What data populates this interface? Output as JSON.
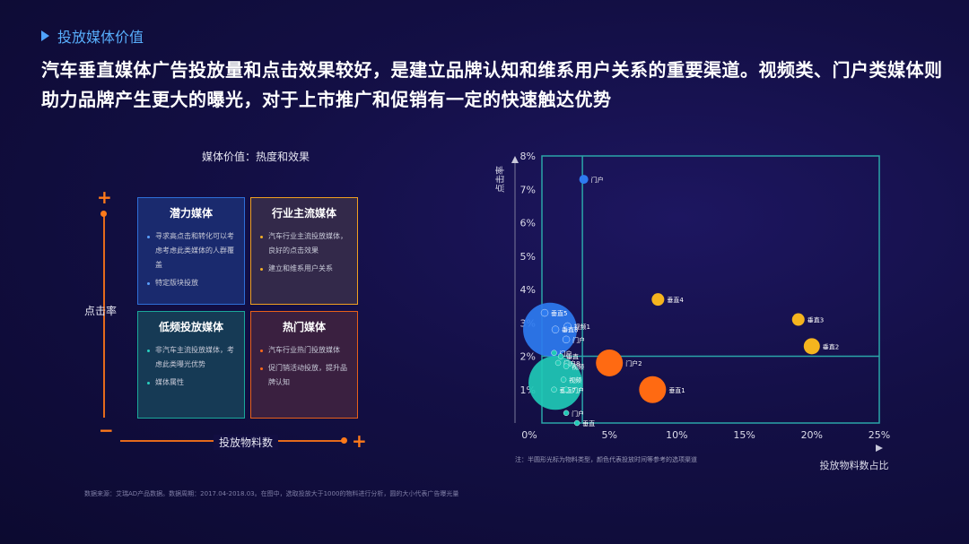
{
  "section": "投放媒体价值",
  "headline": "汽车垂直媒体广告投放量和点击效果较好，是建立品牌认知和维系用户关系的重要渠道。视频类、门户类媒体则助力品牌产生更大的曝光，对于上市推广和促销有一定的快速触达优势",
  "matrix": {
    "title": "媒体价值：热度和效果",
    "y_label": "点击率",
    "x_label": "投放物料数",
    "plus": "+",
    "minus": "−",
    "quadrants": {
      "potential": {
        "title": "潜力媒体",
        "items": [
          "寻求高点击和转化可以考虑考虑此类媒体的人群覆盖",
          "特定版块投放"
        ],
        "color": "#2e6fd8"
      },
      "mainstream": {
        "title": "行业主流媒体",
        "items": [
          "汽车行业主流投放媒体，良好的点击效果",
          "建立和维系用户关系"
        ],
        "color": "#f0a020"
      },
      "low": {
        "title": "低频投放媒体",
        "items": [
          "非汽车主流投放媒体，考虑此类曝光优势",
          "媒体属性"
        ],
        "color": "#1aa89a"
      },
      "hot": {
        "title": "热门媒体",
        "items": [
          "汽车行业热门投放媒体",
          "促门销活动投放，提升品牌认知"
        ],
        "color": "#e8601a"
      }
    }
  },
  "source": "数据来源：艾瑞AD产品数据。数据周期：2017.04-2018.03。在图中，选取投放大于1000的物料进行分析，圆的大小代表广告曝光量",
  "note": "注：半圆形光标为物料类型，颜色代表投放时间等参考的选项渠道",
  "chart_data": {
    "type": "scatter",
    "xlabel": "投放物料数占比",
    "ylabel": "点击率",
    "xlim": [
      0,
      25
    ],
    "ylim": [
      0,
      8
    ],
    "x_ticks": [
      "0%",
      "5%",
      "10%",
      "15%",
      "20%",
      "25%"
    ],
    "y_ticks": [
      "1%",
      "2%",
      "3%",
      "4%",
      "5%",
      "6%",
      "7%",
      "8%"
    ],
    "reference_lines": {
      "x": 3,
      "y": 2
    },
    "points": [
      {
        "label": "门户",
        "x": 3.1,
        "y": 7.3,
        "size": 5,
        "color": "#2e7bf0"
      },
      {
        "label": "垂直4",
        "x": 8.6,
        "y": 3.7,
        "size": 7,
        "color": "#f5b41e"
      },
      {
        "label": "垂直3",
        "x": 19.0,
        "y": 3.1,
        "size": 7,
        "color": "#f5b41e"
      },
      {
        "label": "垂直2",
        "x": 20.0,
        "y": 2.3,
        "size": 9,
        "color": "#f5b41e"
      },
      {
        "label": "门户2",
        "x": 5.0,
        "y": 1.8,
        "size": 15,
        "color": "#ff6a12"
      },
      {
        "label": "垂直1",
        "x": 8.2,
        "y": 1.0,
        "size": 15,
        "color": "#ff6a12"
      },
      {
        "label": "垂直5",
        "x": 0.2,
        "y": 3.3,
        "size": 4,
        "color": "#2e7bf0"
      },
      {
        "label": "视频1",
        "x": 1.9,
        "y": 2.9,
        "size": 4,
        "color": "#2e7bf0"
      },
      {
        "label": "垂直6",
        "x": 1.0,
        "y": 2.8,
        "size": 4,
        "color": "#2e7bf0"
      },
      {
        "label": "门户",
        "x": 1.8,
        "y": 2.5,
        "size": 4,
        "color": "#2e7bf0"
      },
      {
        "label": "",
        "x": 0.6,
        "y": 2.8,
        "size": 30,
        "color": "#2e7bf0"
      },
      {
        "label": "门户",
        "x": 0.9,
        "y": 2.1,
        "size": 3,
        "color": "#1fc9b6"
      },
      {
        "label": "垂直",
        "x": 1.4,
        "y": 2.0,
        "size": 3,
        "color": "#1fc9b6"
      },
      {
        "label": "门户8",
        "x": 1.2,
        "y": 1.8,
        "size": 3,
        "color": "#1fc9b6"
      },
      {
        "label": "视频",
        "x": 1.8,
        "y": 1.7,
        "size": 3,
        "color": "#1fc9b6"
      },
      {
        "label": "视频",
        "x": 1.6,
        "y": 1.3,
        "size": 3,
        "color": "#1fc9b6"
      },
      {
        "label": "垂直7",
        "x": 0.9,
        "y": 1.0,
        "size": 3,
        "color": "#1fc9b6"
      },
      {
        "label": "门户",
        "x": 1.8,
        "y": 1.0,
        "size": 3,
        "color": "#1fc9b6"
      },
      {
        "label": "门户",
        "x": 1.8,
        "y": 0.3,
        "size": 3,
        "color": "#1fc9b6"
      },
      {
        "label": "垂直",
        "x": 2.6,
        "y": 0.0,
        "size": 3,
        "color": "#1fc9b6"
      },
      {
        "label": "",
        "x": 1.0,
        "y": 1.2,
        "size": 30,
        "color": "#1fc9b6"
      }
    ]
  }
}
